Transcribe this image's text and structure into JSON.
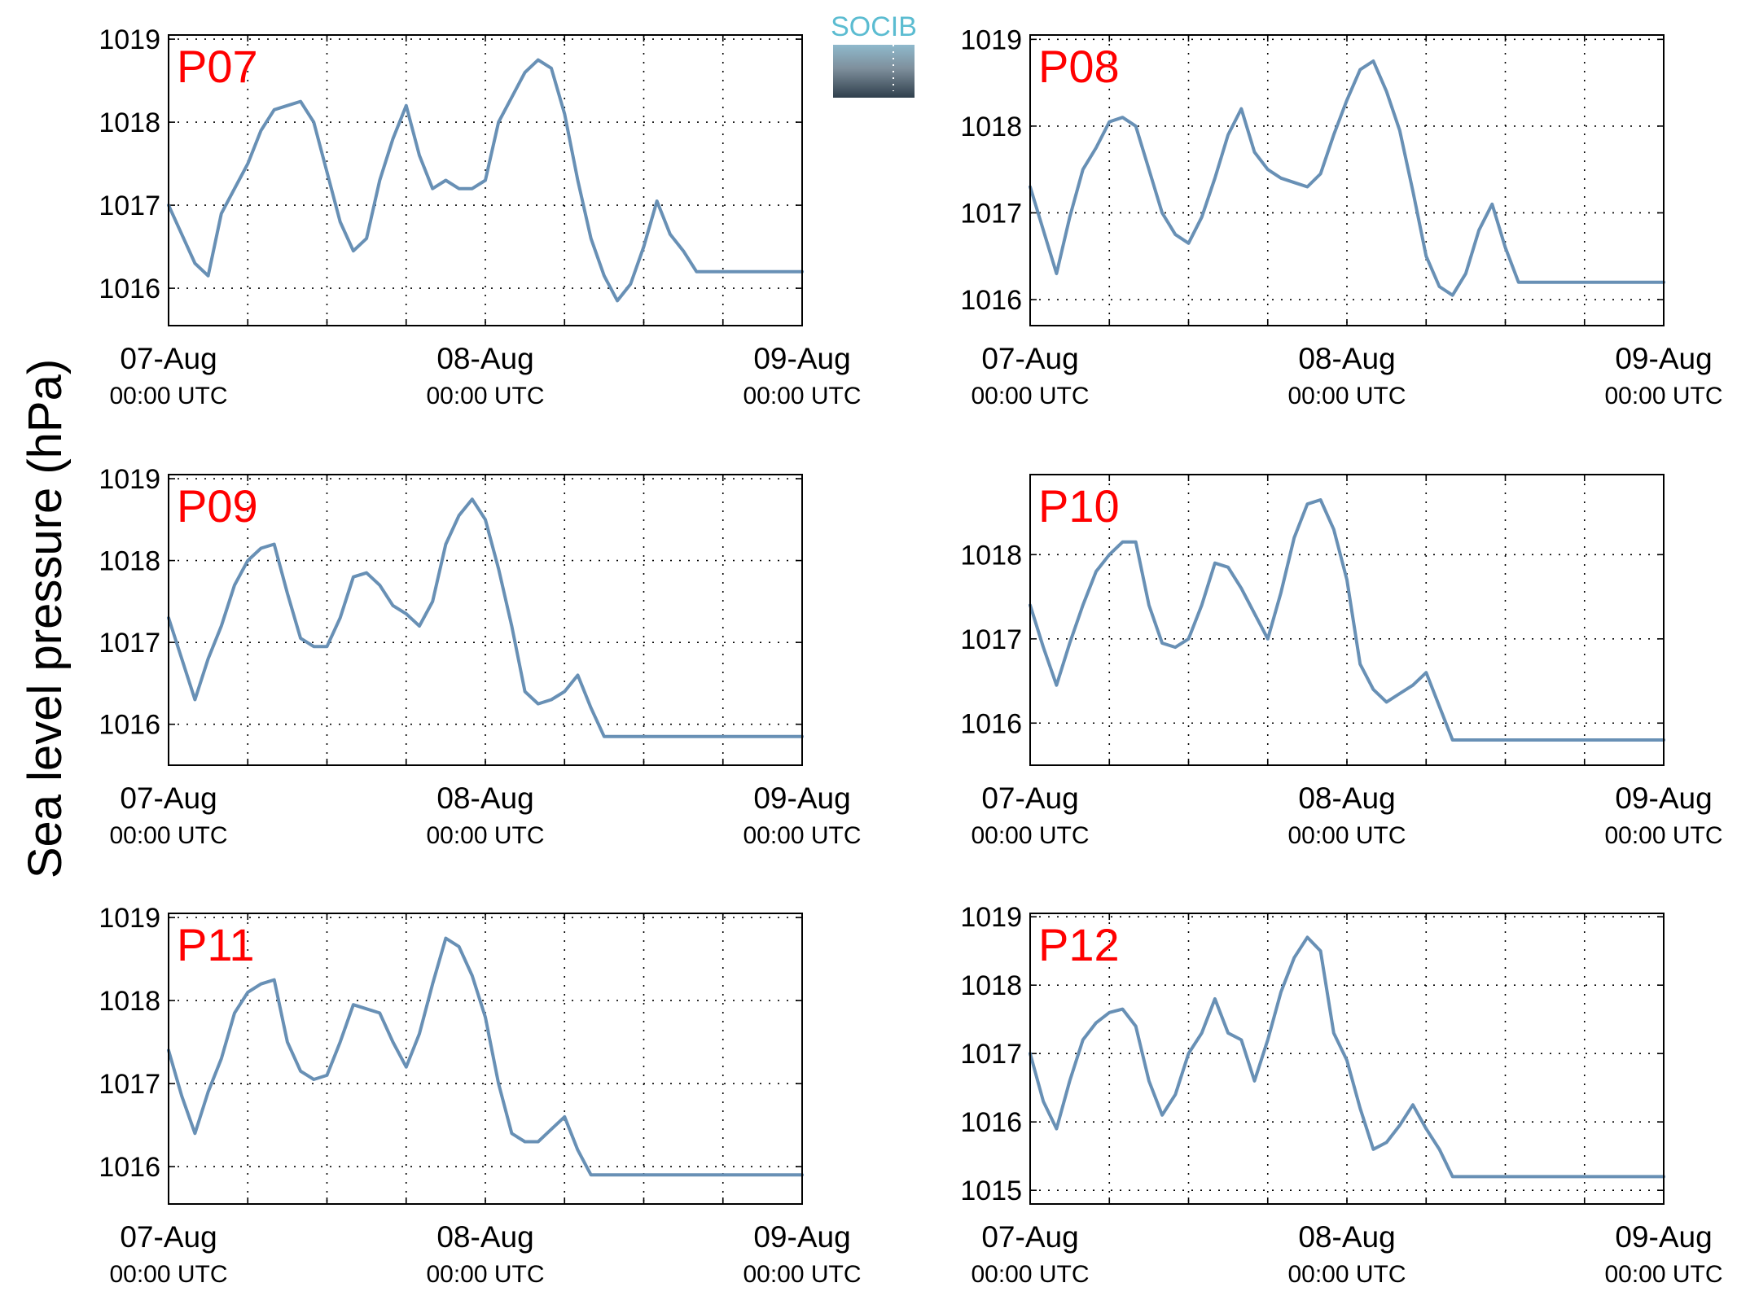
{
  "figure": {
    "ylabel": "Sea level pressure (hPa)",
    "logo_text": "SOCIB",
    "series_color": "#6890b5",
    "label_color": "#ff0000"
  },
  "chart_data": [
    {
      "type": "line",
      "label": "P07",
      "xlim": [
        "07-Aug 00:00 UTC",
        "09-Aug 00:00 UTC"
      ],
      "xticks": [
        {
          "date": "07-Aug",
          "time": "00:00 UTC"
        },
        {
          "date": "08-Aug",
          "time": "00:00 UTC"
        },
        {
          "date": "09-Aug",
          "time": "00:00 UTC"
        }
      ],
      "ylim": [
        1015.55,
        1019.05
      ],
      "yticks": [
        1016,
        1017,
        1018,
        1019
      ],
      "grid": true,
      "x_hours": [
        0,
        1,
        2,
        3,
        4,
        5,
        6,
        7,
        8,
        9,
        10,
        11,
        12,
        13,
        14,
        15,
        16,
        17,
        18,
        19,
        20,
        21,
        22,
        23,
        24,
        25,
        26,
        27,
        28,
        29,
        30,
        31,
        32,
        33,
        34,
        35,
        36,
        37,
        38,
        39,
        40,
        41,
        42,
        43,
        44,
        45,
        46,
        47,
        48
      ],
      "y": [
        1017.0,
        1016.65,
        1016.3,
        1016.15,
        1016.9,
        1017.2,
        1017.5,
        1017.9,
        1018.15,
        1018.2,
        1018.25,
        1018.0,
        1017.4,
        1016.8,
        1016.45,
        1016.6,
        1017.3,
        1017.8,
        1018.2,
        1017.6,
        1017.2,
        1017.3,
        1017.2,
        1017.2,
        1017.3,
        1018.0,
        1018.3,
        1018.6,
        1018.75,
        1018.65,
        1018.1,
        1017.3,
        1016.6,
        1016.15,
        1015.85,
        1016.05,
        1016.5,
        1017.05,
        1016.65,
        1016.45,
        1016.2,
        1016.2,
        1016.2,
        1016.2,
        1016.2,
        1016.2,
        1016.2,
        1016.2,
        1016.2
      ]
    },
    {
      "type": "line",
      "label": "P08",
      "xlim": [
        "07-Aug 00:00 UTC",
        "09-Aug 00:00 UTC"
      ],
      "xticks": [
        {
          "date": "07-Aug",
          "time": "00:00 UTC"
        },
        {
          "date": "08-Aug",
          "time": "00:00 UTC"
        },
        {
          "date": "09-Aug",
          "time": "00:00 UTC"
        }
      ],
      "ylim": [
        1015.7,
        1019.05
      ],
      "yticks": [
        1016,
        1017,
        1018,
        1019
      ],
      "grid": true,
      "x_hours": [
        0,
        1,
        2,
        3,
        4,
        5,
        6,
        7,
        8,
        9,
        10,
        11,
        12,
        13,
        14,
        15,
        16,
        17,
        18,
        19,
        20,
        21,
        22,
        23,
        24,
        25,
        26,
        27,
        28,
        29,
        30,
        31,
        32,
        33,
        34,
        35,
        36,
        37,
        38,
        39,
        40,
        41,
        42,
        43,
        44,
        45,
        46,
        47,
        48
      ],
      "y": [
        1017.3,
        1016.8,
        1016.3,
        1016.95,
        1017.5,
        1017.75,
        1018.05,
        1018.1,
        1018.0,
        1017.5,
        1017.0,
        1016.75,
        1016.65,
        1016.95,
        1017.4,
        1017.9,
        1018.2,
        1017.7,
        1017.5,
        1017.4,
        1017.35,
        1017.3,
        1017.45,
        1017.9,
        1018.3,
        1018.65,
        1018.75,
        1018.4,
        1017.95,
        1017.25,
        1016.5,
        1016.15,
        1016.05,
        1016.3,
        1016.8,
        1017.1,
        1016.6,
        1016.2,
        1016.2,
        1016.2,
        1016.2,
        1016.2,
        1016.2,
        1016.2,
        1016.2,
        1016.2,
        1016.2,
        1016.2,
        1016.2
      ]
    },
    {
      "type": "line",
      "label": "P09",
      "xlim": [
        "07-Aug 00:00 UTC",
        "09-Aug 00:00 UTC"
      ],
      "xticks": [
        {
          "date": "07-Aug",
          "time": "00:00 UTC"
        },
        {
          "date": "08-Aug",
          "time": "00:00 UTC"
        },
        {
          "date": "09-Aug",
          "time": "00:00 UTC"
        }
      ],
      "ylim": [
        1015.5,
        1019.05
      ],
      "yticks": [
        1016,
        1017,
        1018,
        1019
      ],
      "grid": true,
      "x_hours": [
        0,
        1,
        2,
        3,
        4,
        5,
        6,
        7,
        8,
        9,
        10,
        11,
        12,
        13,
        14,
        15,
        16,
        17,
        18,
        19,
        20,
        21,
        22,
        23,
        24,
        25,
        26,
        27,
        28,
        29,
        30,
        31,
        32,
        33,
        34,
        35,
        36,
        37,
        38,
        39,
        40,
        41,
        42,
        43,
        44,
        45,
        46,
        47,
        48
      ],
      "y": [
        1017.3,
        1016.8,
        1016.3,
        1016.8,
        1017.2,
        1017.7,
        1018.0,
        1018.15,
        1018.2,
        1017.6,
        1017.05,
        1016.95,
        1016.95,
        1017.3,
        1017.8,
        1017.85,
        1017.7,
        1017.45,
        1017.35,
        1017.2,
        1017.5,
        1018.2,
        1018.55,
        1018.75,
        1018.5,
        1017.9,
        1017.2,
        1016.4,
        1016.25,
        1016.3,
        1016.4,
        1016.6,
        1016.2,
        1015.85,
        1015.85,
        1015.85,
        1015.85,
        1015.85,
        1015.85,
        1015.85,
        1015.85,
        1015.85,
        1015.85,
        1015.85,
        1015.85,
        1015.85,
        1015.85,
        1015.85,
        1015.85
      ]
    },
    {
      "type": "line",
      "label": "P10",
      "xlim": [
        "07-Aug 00:00 UTC",
        "09-Aug 00:00 UTC"
      ],
      "xticks": [
        {
          "date": "07-Aug",
          "time": "00:00 UTC"
        },
        {
          "date": "08-Aug",
          "time": "00:00 UTC"
        },
        {
          "date": "09-Aug",
          "time": "00:00 UTC"
        }
      ],
      "ylim": [
        1015.5,
        1018.95
      ],
      "yticks": [
        1016,
        1017,
        1018
      ],
      "grid": true,
      "x_hours": [
        0,
        1,
        2,
        3,
        4,
        5,
        6,
        7,
        8,
        9,
        10,
        11,
        12,
        13,
        14,
        15,
        16,
        17,
        18,
        19,
        20,
        21,
        22,
        23,
        24,
        25,
        26,
        27,
        28,
        29,
        30,
        31,
        32,
        33,
        34,
        35,
        36,
        37,
        38,
        39,
        40,
        41,
        42,
        43,
        44,
        45,
        46,
        47,
        48
      ],
      "y": [
        1017.4,
        1016.9,
        1016.45,
        1016.95,
        1017.4,
        1017.8,
        1018.0,
        1018.15,
        1018.15,
        1017.4,
        1016.95,
        1016.9,
        1017.0,
        1017.4,
        1017.9,
        1017.85,
        1017.6,
        1017.3,
        1017.0,
        1017.55,
        1018.2,
        1018.6,
        1018.65,
        1018.3,
        1017.7,
        1016.7,
        1016.4,
        1016.25,
        1016.35,
        1016.45,
        1016.6,
        1016.2,
        1015.8,
        1015.8,
        1015.8,
        1015.8,
        1015.8,
        1015.8,
        1015.8,
        1015.8,
        1015.8,
        1015.8,
        1015.8,
        1015.8,
        1015.8,
        1015.8,
        1015.8,
        1015.8,
        1015.8
      ]
    },
    {
      "type": "line",
      "label": "P11",
      "xlim": [
        "07-Aug 00:00 UTC",
        "09-Aug 00:00 UTC"
      ],
      "xticks": [
        {
          "date": "07-Aug",
          "time": "00:00 UTC"
        },
        {
          "date": "08-Aug",
          "time": "00:00 UTC"
        },
        {
          "date": "09-Aug",
          "time": "00:00 UTC"
        }
      ],
      "ylim": [
        1015.55,
        1019.05
      ],
      "yticks": [
        1016,
        1017,
        1018,
        1019
      ],
      "grid": true,
      "x_hours": [
        0,
        1,
        2,
        3,
        4,
        5,
        6,
        7,
        8,
        9,
        10,
        11,
        12,
        13,
        14,
        15,
        16,
        17,
        18,
        19,
        20,
        21,
        22,
        23,
        24,
        25,
        26,
        27,
        28,
        29,
        30,
        31,
        32,
        33,
        34,
        35,
        36,
        37,
        38,
        39,
        40,
        41,
        42,
        43,
        44,
        45,
        46,
        47,
        48
      ],
      "y": [
        1017.4,
        1016.85,
        1016.4,
        1016.9,
        1017.3,
        1017.85,
        1018.1,
        1018.2,
        1018.25,
        1017.5,
        1017.15,
        1017.05,
        1017.1,
        1017.5,
        1017.95,
        1017.9,
        1017.85,
        1017.5,
        1017.2,
        1017.6,
        1018.2,
        1018.75,
        1018.65,
        1018.3,
        1017.8,
        1017.0,
        1016.4,
        1016.3,
        1016.3,
        1016.45,
        1016.6,
        1016.2,
        1015.9,
        1015.9,
        1015.9,
        1015.9,
        1015.9,
        1015.9,
        1015.9,
        1015.9,
        1015.9,
        1015.9,
        1015.9,
        1015.9,
        1015.9,
        1015.9,
        1015.9,
        1015.9,
        1015.9
      ]
    },
    {
      "type": "line",
      "label": "P12",
      "xlim": [
        "07-Aug 00:00 UTC",
        "09-Aug 00:00 UTC"
      ],
      "xticks": [
        {
          "date": "07-Aug",
          "time": "00:00 UTC"
        },
        {
          "date": "08-Aug",
          "time": "00:00 UTC"
        },
        {
          "date": "09-Aug",
          "time": "00:00 UTC"
        }
      ],
      "ylim": [
        1014.8,
        1019.05
      ],
      "yticks": [
        1015,
        1016,
        1017,
        1018,
        1019
      ],
      "grid": true,
      "x_hours": [
        0,
        1,
        2,
        3,
        4,
        5,
        6,
        7,
        8,
        9,
        10,
        11,
        12,
        13,
        14,
        15,
        16,
        17,
        18,
        19,
        20,
        21,
        22,
        23,
        24,
        25,
        26,
        27,
        28,
        29,
        30,
        31,
        32,
        33,
        34,
        35,
        36,
        37,
        38,
        39,
        40,
        41,
        42,
        43,
        44,
        45,
        46,
        47,
        48
      ],
      "y": [
        1017.0,
        1016.3,
        1015.9,
        1016.6,
        1017.2,
        1017.45,
        1017.6,
        1017.65,
        1017.4,
        1016.6,
        1016.1,
        1016.4,
        1017.0,
        1017.3,
        1017.8,
        1017.3,
        1017.2,
        1016.6,
        1017.2,
        1017.9,
        1018.4,
        1018.7,
        1018.5,
        1017.3,
        1016.9,
        1016.2,
        1015.6,
        1015.7,
        1015.95,
        1016.25,
        1015.9,
        1015.6,
        1015.2,
        1015.2,
        1015.2,
        1015.2,
        1015.2,
        1015.2,
        1015.2,
        1015.2,
        1015.2,
        1015.2,
        1015.2,
        1015.2,
        1015.2,
        1015.2,
        1015.2,
        1015.2,
        1015.2
      ]
    }
  ]
}
